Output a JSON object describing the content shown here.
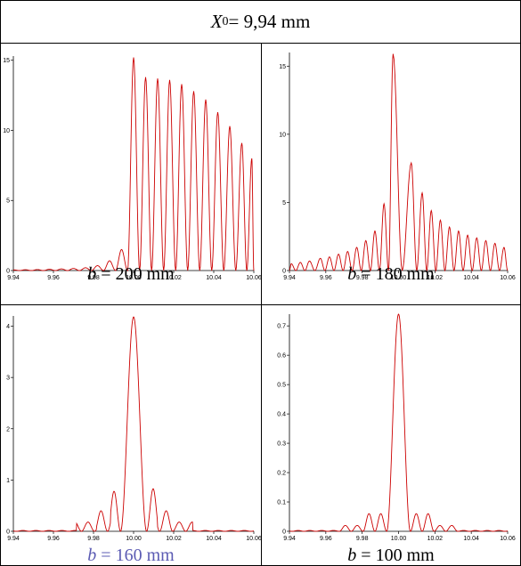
{
  "header": {
    "var_symbol": "X",
    "var_subscript": "0",
    "value_text": " = 9,94 mm"
  },
  "panels": [
    {
      "caption_var": "b",
      "caption_text": " = 200 mm",
      "caption_color": "#000000"
    },
    {
      "caption_var": "b",
      "caption_text": " = 180 mm",
      "caption_color": "#000000"
    },
    {
      "caption_var": "b",
      "caption_text": " = 160 mm",
      "caption_color": "#5b5bb3"
    },
    {
      "caption_var": "b",
      "caption_text": " = 100 mm",
      "caption_color": "#000000"
    }
  ],
  "chart_data": [
    {
      "type": "line",
      "title": "b = 200 mm",
      "line_color": "#cc0000",
      "xlim": [
        9.94,
        10.06
      ],
      "ylim": [
        0,
        15.3
      ],
      "x_ticks": [
        9.94,
        9.96,
        9.98,
        10.0,
        10.02,
        10.04,
        10.06
      ],
      "x_tick_labels": [
        "9.94",
        "9.96",
        "9.98",
        "10.00",
        "10.02",
        "10.04",
        "10.06"
      ],
      "y_ticks": [
        0,
        5,
        10,
        15
      ],
      "y_tick_labels": [
        "0",
        "5",
        "10",
        "15"
      ],
      "fringe_peaks": {
        "x": [
          9.94,
          9.946,
          9.952,
          9.958,
          9.964,
          9.97,
          9.976,
          9.982,
          9.988,
          9.994,
          10.0,
          10.006,
          10.012,
          10.018,
          10.024,
          10.03,
          10.036,
          10.042,
          10.048,
          10.054,
          10.059
        ],
        "y": [
          0.05,
          0.06,
          0.07,
          0.09,
          0.12,
          0.15,
          0.2,
          0.35,
          0.7,
          1.5,
          15.2,
          13.8,
          13.7,
          13.6,
          13.3,
          12.8,
          12.2,
          11.3,
          10.3,
          9.1,
          8.0
        ]
      }
    },
    {
      "type": "line",
      "title": "b = 180 mm",
      "line_color": "#cc0000",
      "xlim": [
        9.94,
        10.06
      ],
      "ylim": [
        0,
        16
      ],
      "x_ticks": [
        9.94,
        9.96,
        9.98,
        10.0,
        10.02,
        10.04,
        10.06
      ],
      "x_tick_labels": [
        "9.94",
        "9.96",
        "9.98",
        "10.00",
        "10.02",
        "10.04",
        "10.06"
      ],
      "y_ticks": [
        0,
        5,
        10,
        15
      ],
      "y_tick_labels": [
        "0",
        "5",
        "10",
        "15"
      ],
      "fringe_peaks": {
        "x": [
          9.941,
          9.946,
          9.951,
          9.957,
          9.962,
          9.967,
          9.972,
          9.977,
          9.982,
          9.987,
          9.992,
          9.997,
          10.001,
          10.007,
          10.013,
          10.018,
          10.023,
          10.028,
          10.033,
          10.038,
          10.043,
          10.048,
          10.053,
          10.058
        ],
        "y": [
          0.5,
          0.6,
          0.7,
          0.9,
          1.0,
          1.2,
          1.4,
          1.7,
          2.2,
          2.9,
          4.9,
          15.9,
          0.0,
          7.9,
          5.7,
          4.4,
          3.7,
          3.2,
          2.9,
          2.6,
          2.4,
          2.2,
          2.0,
          1.7
        ]
      }
    },
    {
      "type": "line",
      "title": "b = 160 mm",
      "line_color": "#cc0000",
      "xlim": [
        9.94,
        10.06
      ],
      "ylim": [
        0,
        4.2
      ],
      "x_ticks": [
        9.94,
        9.96,
        9.98,
        10.0,
        10.02,
        10.04,
        10.06
      ],
      "x_tick_labels": [
        "9.94",
        "9.96",
        "9.98",
        "10.00",
        "10.02",
        "10.04",
        "10.06"
      ],
      "y_ticks": [
        0,
        1,
        2,
        3,
        4
      ],
      "y_tick_labels": [
        "0",
        "1",
        "2",
        "3",
        "4"
      ],
      "main_peak": {
        "x": 10.0,
        "y": 4.18
      },
      "side_peaks": {
        "x": [
          9.992,
          10.008,
          9.985,
          10.016,
          9.978,
          10.023
        ],
        "y": [
          0.78,
          0.83,
          0.4,
          0.4,
          0.18,
          0.18
        ]
      }
    },
    {
      "type": "line",
      "title": "b = 100 mm",
      "line_color": "#cc0000",
      "xlim": [
        9.94,
        10.06
      ],
      "ylim": [
        0,
        0.74
      ],
      "x_ticks": [
        9.94,
        9.96,
        9.98,
        10.0,
        10.02,
        10.04,
        10.06
      ],
      "x_tick_labels": [
        "9.94",
        "9.96",
        "9.98",
        "10.00",
        "10.02",
        "10.04",
        "10.06"
      ],
      "y_ticks": [
        0,
        0.1,
        0.2,
        0.3,
        0.4,
        0.5,
        0.6,
        0.7
      ],
      "y_tick_labels": [
        "0",
        "0.1",
        "0.2",
        "0.3",
        "0.4",
        "0.5",
        "0.6",
        "0.7"
      ],
      "main_peak": {
        "x": 10.0,
        "y": 0.74
      },
      "side_peaks": {
        "x": [
          9.987,
          10.013,
          9.974,
          10.026
        ],
        "y": [
          0.06,
          0.06,
          0.02,
          0.02
        ]
      }
    }
  ]
}
